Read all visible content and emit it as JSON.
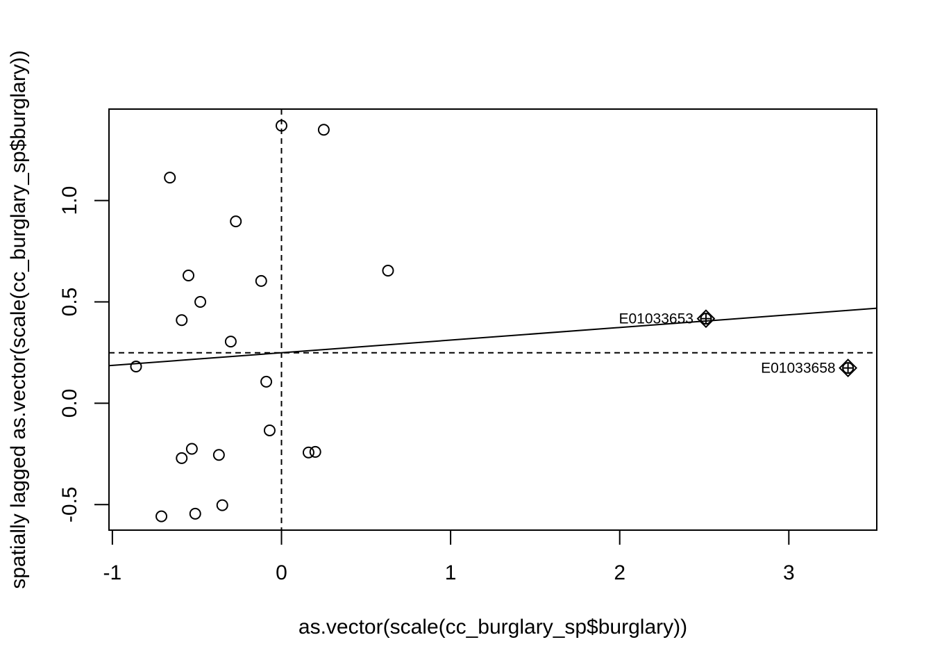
{
  "chart_data": {
    "type": "scatter",
    "title": "",
    "xlabel": "as.vector(scale(cc_burglary_sp$burglary))",
    "ylabel": "spatially lagged as.vector(scale(cc_burglary_sp$burglary))",
    "xlim": [
      -1.02,
      3.52
    ],
    "ylim": [
      -0.626,
      1.451
    ],
    "x_ticks": [
      -1,
      0,
      1,
      2,
      3
    ],
    "x_tick_labels": [
      "-1",
      "0",
      "1",
      "2",
      "3"
    ],
    "y_ticks": [
      -0.5,
      0.0,
      0.5,
      1.0
    ],
    "y_tick_labels": [
      "-0.5",
      "0.0",
      "0.5",
      "1.0"
    ],
    "grid": false,
    "points": [
      {
        "x": 0.0,
        "y": 1.369
      },
      {
        "x": 0.25,
        "y": 1.349
      },
      {
        "x": -0.66,
        "y": 1.113
      },
      {
        "x": -0.27,
        "y": 0.897
      },
      {
        "x": 0.63,
        "y": 0.654
      },
      {
        "x": -0.55,
        "y": 0.63
      },
      {
        "x": -0.12,
        "y": 0.603
      },
      {
        "x": -0.48,
        "y": 0.5
      },
      {
        "x": -0.59,
        "y": 0.41
      },
      {
        "x": -0.3,
        "y": 0.304
      },
      {
        "x": -0.86,
        "y": 0.181
      },
      {
        "x": -0.09,
        "y": 0.106
      },
      {
        "x": -0.07,
        "y": -0.134
      },
      {
        "x": -0.53,
        "y": -0.225
      },
      {
        "x": -0.59,
        "y": -0.271
      },
      {
        "x": -0.37,
        "y": -0.255
      },
      {
        "x": 0.16,
        "y": -0.243
      },
      {
        "x": 0.2,
        "y": -0.24
      },
      {
        "x": -0.71,
        "y": -0.558
      },
      {
        "x": -0.51,
        "y": -0.545
      },
      {
        "x": -0.35,
        "y": -0.503
      }
    ],
    "influential_points": [
      {
        "x": 2.51,
        "y": 0.417,
        "label": "E01033653"
      },
      {
        "x": 3.35,
        "y": 0.174,
        "label": "E01033658"
      }
    ],
    "regression_line": {
      "intercept": 0.249,
      "slope": 0.0624
    },
    "vline_x": 0,
    "hline_y": 0.249
  }
}
